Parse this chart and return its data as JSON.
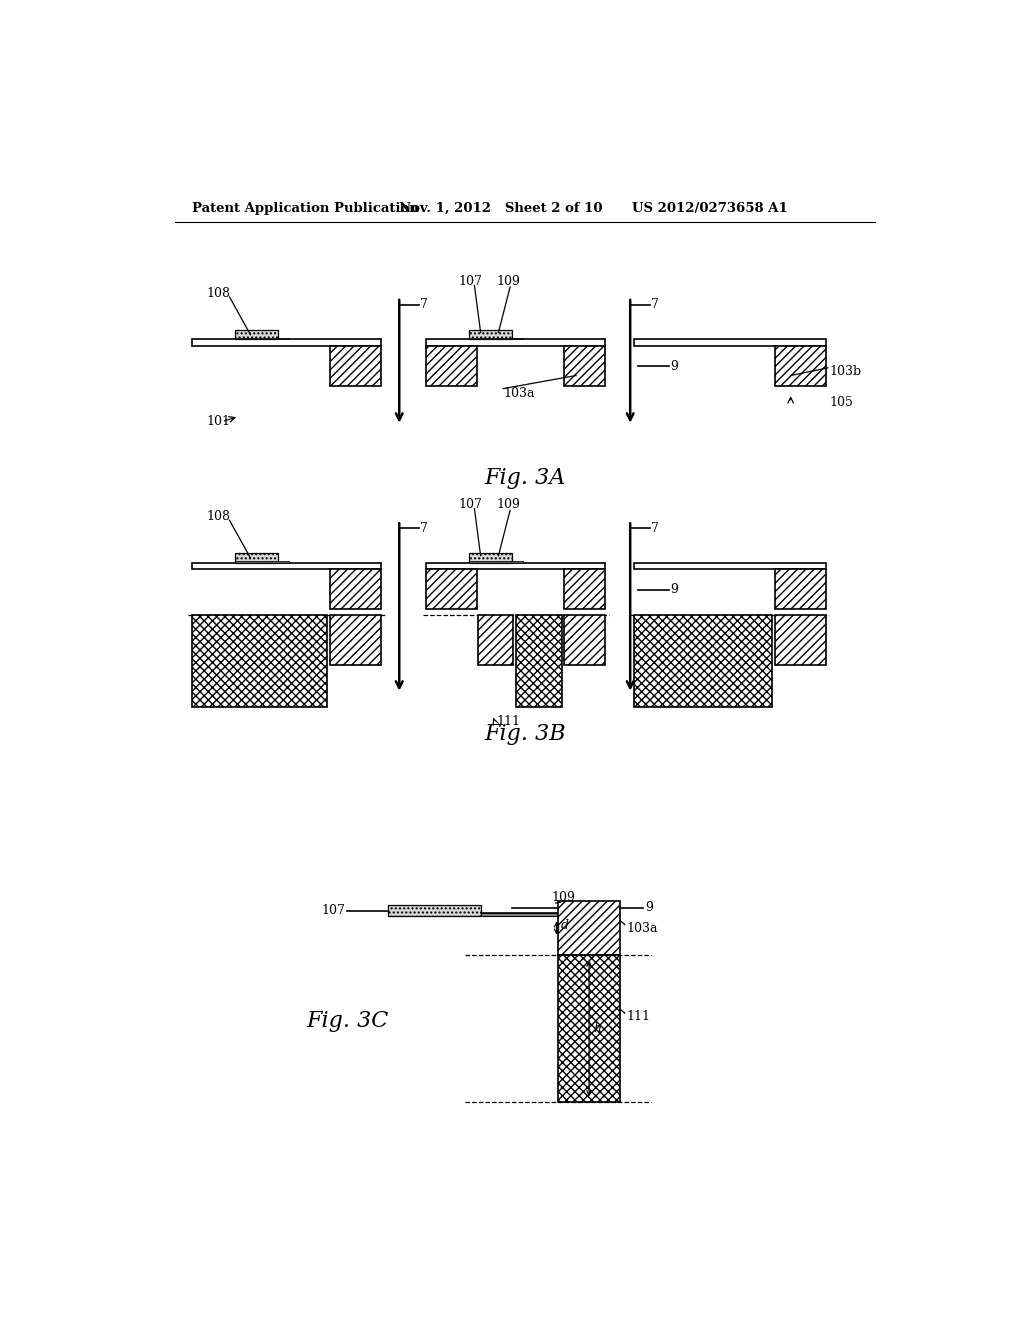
{
  "header_left": "Patent Application Publication",
  "header_mid": "Nov. 1, 2012   Sheet 2 of 10",
  "header_right": "US 2012/0273658 A1",
  "fig3a_label": "Fig. 3A",
  "fig3b_label": "Fig. 3B",
  "fig3c_label": "Fig. 3C",
  "bg_color": "#ffffff",
  "line_color": "#000000"
}
